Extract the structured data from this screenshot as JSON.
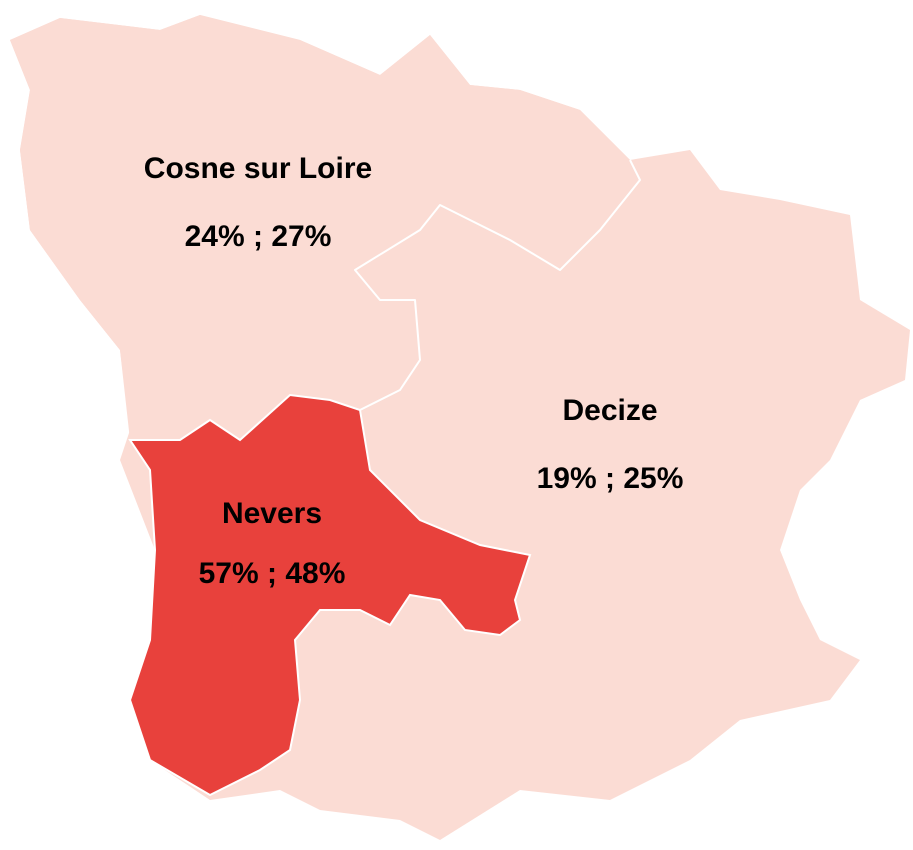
{
  "regions": [
    {
      "name": "Cosne sur Loire",
      "label": "24% ; 27%"
    },
    {
      "name": "Decize",
      "label": "19% ; 25%"
    },
    {
      "name": "Nevers",
      "label": "57% ; 48%"
    }
  ]
}
